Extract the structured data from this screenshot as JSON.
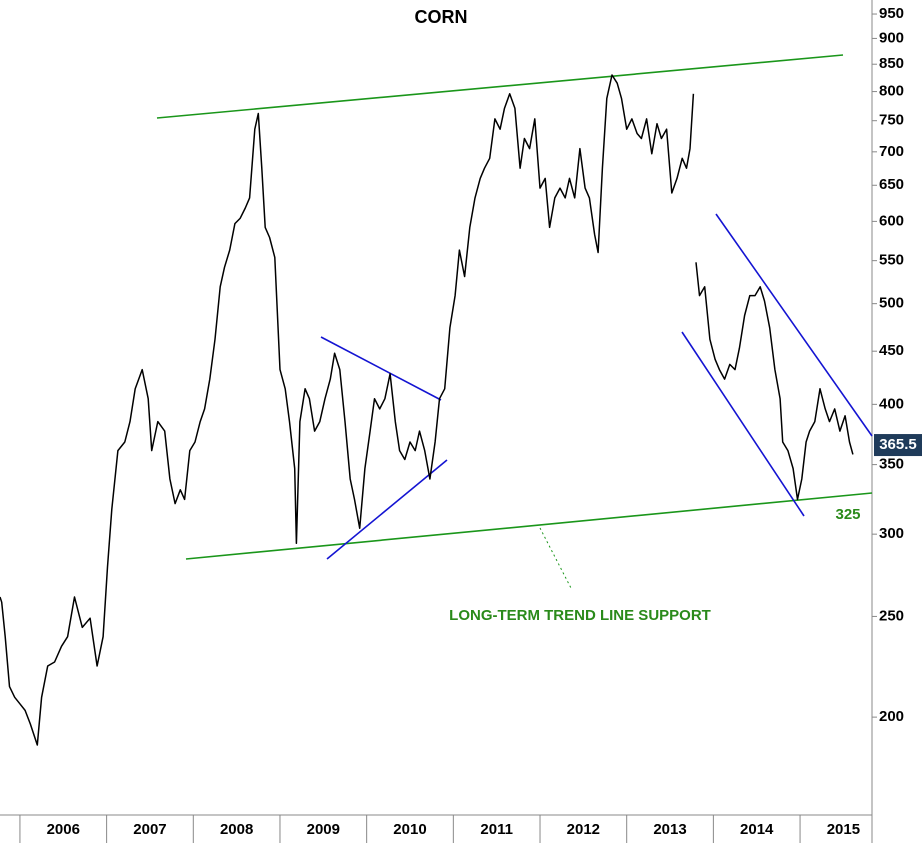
{
  "chart_data": {
    "type": "line",
    "title": "CORN",
    "color": "#000000",
    "log_scale": true,
    "grid": false,
    "xlim": [
      2005.77,
      2015.83
    ],
    "ylim": [
      161,
      980
    ],
    "xticks": [
      2006,
      2007,
      2008,
      2009,
      2010,
      2011,
      2012,
      2013,
      2014,
      2015
    ],
    "yticks": [
      200,
      250,
      300,
      350,
      400,
      450,
      500,
      550,
      600,
      650,
      700,
      750,
      800,
      850,
      900,
      950
    ],
    "x": [
      2005.77,
      2005.79,
      2005.83,
      2005.88,
      2005.94,
      2006.0,
      2006.06,
      2006.12,
      2006.2,
      2006.25,
      2006.32,
      2006.4,
      2006.48,
      2006.55,
      2006.63,
      2006.72,
      2006.81,
      2006.89,
      2006.96,
      2007.01,
      2007.06,
      2007.13,
      2007.21,
      2007.27,
      2007.33,
      2007.41,
      2007.48,
      2007.52,
      2007.59,
      2007.67,
      2007.73,
      2007.79,
      2007.85,
      2007.9,
      2007.96,
      2008.02,
      2008.08,
      2008.13,
      2008.19,
      2008.25,
      2008.31,
      2008.36,
      2008.42,
      2008.48,
      2008.54,
      2008.6,
      2008.65,
      2008.71,
      2008.75,
      2008.79,
      2008.83,
      2008.88,
      2008.94,
      2009.0,
      2009.06,
      2009.11,
      2009.17,
      2009.19,
      2009.23,
      2009.29,
      2009.34,
      2009.4,
      2009.46,
      2009.52,
      2009.58,
      2009.63,
      2009.69,
      2009.75,
      2009.81,
      2009.86,
      2009.92,
      2009.98,
      2010.04,
      2010.09,
      2010.15,
      2010.21,
      2010.27,
      2010.33,
      2010.38,
      2010.44,
      2010.5,
      2010.56,
      2010.61,
      2010.67,
      2010.73,
      2010.79,
      2010.84,
      2010.9,
      2010.96,
      2011.02,
      2011.07,
      2011.13,
      2011.19,
      2011.25,
      2011.31,
      2011.36,
      2011.42,
      2011.48,
      2011.54,
      2011.59,
      2011.65,
      2011.71,
      2011.77,
      2011.82,
      2011.88,
      2011.94,
      2012.0,
      2012.06,
      2012.11,
      2012.17,
      2012.23,
      2012.29,
      2012.34,
      2012.4,
      2012.46,
      2012.52,
      2012.57,
      2012.63,
      2012.67,
      2012.72,
      2012.77,
      2012.83,
      2012.89,
      2012.94,
      2013.0,
      2013.06,
      2013.12,
      2013.17,
      2013.23,
      2013.29,
      2013.35,
      2013.4,
      2013.46,
      2013.52,
      2013.58,
      2013.64,
      2013.69,
      2013.73,
      2013.77,
      2013.78,
      2013.8,
      2013.84,
      2013.9,
      2013.96,
      2014.02,
      2014.07,
      2014.13,
      2014.19,
      2014.25,
      2014.3,
      2014.36,
      2014.42,
      2014.48,
      2014.54,
      2014.59,
      2014.65,
      2014.71,
      2014.77,
      2014.8,
      2014.86,
      2014.92,
      2014.97,
      2015.02,
      2015.07,
      2015.11,
      2015.17,
      2015.23,
      2015.29,
      2015.34,
      2015.4,
      2015.46,
      2015.52,
      2015.57,
      2015.61
    ],
    "values": [
      261,
      258,
      239,
      214,
      209,
      206,
      203,
      197,
      188,
      209,
      224,
      226,
      234,
      239,
      261,
      244,
      249,
      224,
      239,
      279,
      317,
      361,
      368,
      385,
      414,
      432,
      405,
      361,
      385,
      377,
      339,
      321,
      331,
      324,
      361,
      368,
      385,
      396,
      423,
      462,
      519,
      542,
      563,
      597,
      604,
      618,
      632,
      736,
      762,
      675,
      592,
      579,
      554,
      432,
      414,
      385,
      347,
      294,
      385,
      414,
      405,
      377,
      385,
      405,
      423,
      448,
      432,
      385,
      339,
      324,
      304,
      347,
      377,
      405,
      396,
      405,
      428,
      385,
      361,
      354,
      368,
      361,
      377,
      361,
      339,
      368,
      405,
      414,
      474,
      509,
      563,
      531,
      592,
      632,
      660,
      675,
      690,
      753,
      736,
      771,
      796,
      771,
      675,
      721,
      705,
      753,
      646,
      660,
      592,
      632,
      646,
      632,
      660,
      632,
      705,
      646,
      632,
      583,
      560,
      675,
      788,
      830,
      815,
      788,
      736,
      753,
      729,
      721,
      753,
      697,
      745,
      721,
      736,
      639,
      660,
      690,
      675,
      705,
      796,
      null,
      548,
      509,
      519,
      462,
      442,
      432,
      423,
      437,
      432,
      453,
      487,
      509,
      509,
      519,
      503,
      474,
      432,
      405,
      368,
      361,
      347,
      324,
      339,
      368,
      377,
      385,
      414,
      396,
      385,
      396,
      377,
      390,
      368,
      358
    ],
    "trend_label": "LONG-TERM TREND LINE SUPPORT",
    "support_level": 325,
    "last_price": 365.5
  }
}
